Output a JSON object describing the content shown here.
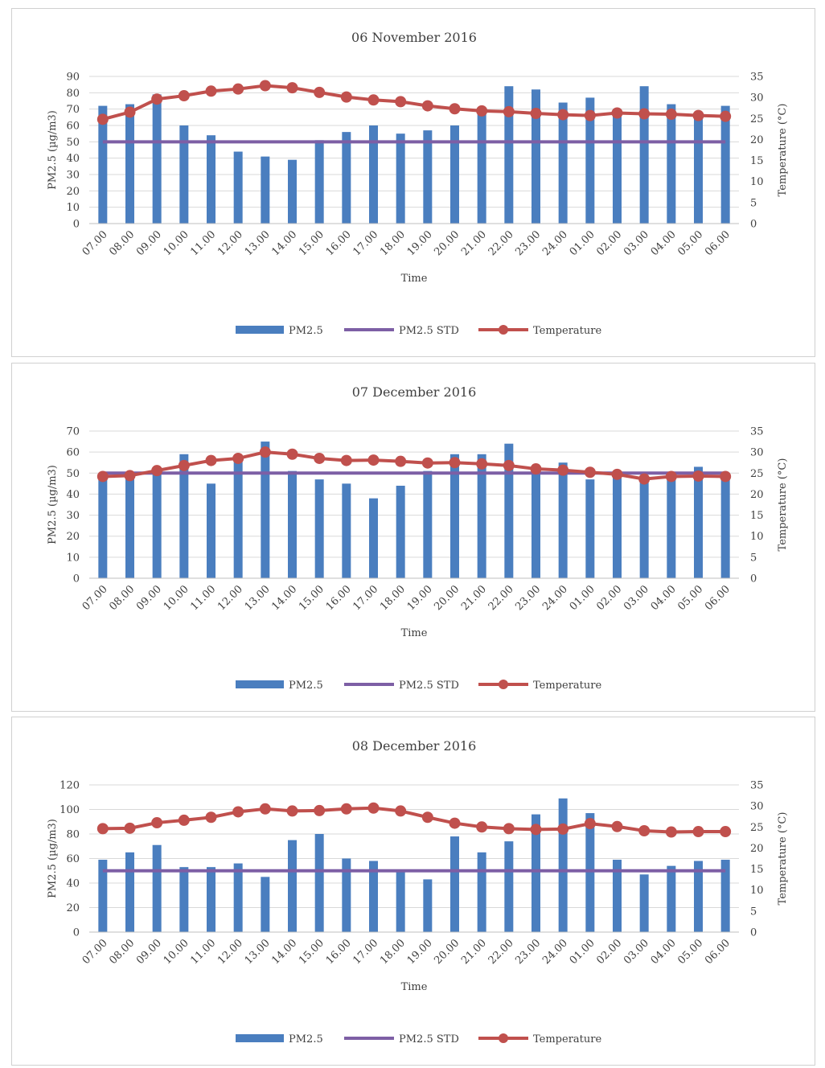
{
  "chart_data": [
    {
      "type": "bar",
      "title": "06 November 2016",
      "xlabel": "Time",
      "ylabel": "PM2.5 (µg/m3)",
      "y2label": "Temperature (°C)",
      "ylim": [
        0,
        90
      ],
      "yticks": [
        0,
        10,
        20,
        30,
        40,
        50,
        60,
        70,
        80,
        90
      ],
      "y2lim": [
        0,
        35
      ],
      "y2ticks": [
        0,
        5,
        10,
        15,
        20,
        25,
        30,
        35
      ],
      "grid": true,
      "legend_position": "bottom",
      "categories": [
        "07.00",
        "08.00",
        "09.00",
        "10.00",
        "11.00",
        "12.00",
        "13.00",
        "14.00",
        "15.00",
        "16.00",
        "17.00",
        "18.00",
        "19.00",
        "20.00",
        "21.00",
        "22.00",
        "23.00",
        "24.00",
        "01.00",
        "02.00",
        "03.00",
        "04.00",
        "05.00",
        "06.00"
      ],
      "series": [
        {
          "name": "PM2.5",
          "kind": "bar",
          "axis": "left",
          "color": "#4a7ebf",
          "values": [
            72,
            73,
            79,
            60,
            54,
            44,
            41,
            39,
            51,
            56,
            60,
            55,
            57,
            60,
            70,
            84,
            82,
            74,
            77,
            70,
            84,
            73,
            68,
            72
          ]
        },
        {
          "name": "PM2.5 STD",
          "kind": "line",
          "axis": "left",
          "color": "#7d5fa5",
          "values": [
            50,
            50,
            50,
            50,
            50,
            50,
            50,
            50,
            50,
            50,
            50,
            50,
            50,
            50,
            50,
            50,
            50,
            50,
            50,
            50,
            50,
            50,
            50,
            50
          ]
        },
        {
          "name": "Temperature",
          "kind": "line-marker",
          "axis": "right",
          "color": "#c0504d",
          "values": [
            24.8,
            26.5,
            29.6,
            30.4,
            31.5,
            32.0,
            32.8,
            32.3,
            31.2,
            30.1,
            29.4,
            29.0,
            28.0,
            27.3,
            26.8,
            26.6,
            26.2,
            25.9,
            25.7,
            26.3,
            26.1,
            26.0,
            25.7,
            25.5
          ]
        }
      ]
    },
    {
      "type": "bar",
      "title": "07 December 2016",
      "xlabel": "Time",
      "ylabel": "PM2.5 (µg/m3)",
      "y2label": "Temperature (°C)",
      "ylim": [
        0,
        70
      ],
      "yticks": [
        0,
        10,
        20,
        30,
        40,
        50,
        60,
        70
      ],
      "y2lim": [
        0,
        35
      ],
      "y2ticks": [
        0,
        5,
        10,
        15,
        20,
        25,
        30,
        35
      ],
      "grid": true,
      "legend_position": "bottom",
      "categories": [
        "07.00",
        "08.00",
        "09.00",
        "10.00",
        "11.00",
        "12.00",
        "13.00",
        "14.00",
        "15.00",
        "16.00",
        "17.00",
        "18.00",
        "19.00",
        "20.00",
        "21.00",
        "22.00",
        "23.00",
        "24.00",
        "01.00",
        "02.00",
        "03.00",
        "04.00",
        "05.00",
        "06.00"
      ],
      "series": [
        {
          "name": "PM2.5",
          "kind": "bar",
          "axis": "left",
          "color": "#4a7ebf",
          "values": [
            49,
            50,
            52,
            59,
            45,
            58,
            65,
            51,
            47,
            45,
            38,
            44,
            51,
            59,
            59,
            64,
            52,
            55,
            47,
            50,
            48,
            50,
            53,
            50
          ]
        },
        {
          "name": "PM2.5 STD",
          "kind": "line",
          "axis": "left",
          "color": "#7d5fa5",
          "values": [
            50,
            50,
            50,
            50,
            50,
            50,
            50,
            50,
            50,
            50,
            50,
            50,
            50,
            50,
            50,
            50,
            50,
            50,
            50,
            50,
            50,
            50,
            50,
            50
          ]
        },
        {
          "name": "Temperature",
          "kind": "line-marker",
          "axis": "right",
          "color": "#c0504d",
          "values": [
            24.2,
            24.4,
            25.6,
            26.8,
            28.0,
            28.5,
            30.0,
            29.5,
            28.5,
            28.0,
            28.1,
            27.8,
            27.4,
            27.5,
            27.2,
            26.8,
            26.0,
            25.7,
            25.2,
            24.7,
            23.6,
            24.2,
            24.3,
            24.2
          ]
        }
      ]
    },
    {
      "type": "bar",
      "title": "08 December 2016",
      "xlabel": "Time",
      "ylabel": "PM2.5 (µg/m3)",
      "y2label": "Temperature (°C)",
      "ylim": [
        0,
        120
      ],
      "yticks": [
        0,
        20,
        40,
        60,
        80,
        100,
        120
      ],
      "y2lim": [
        0,
        35
      ],
      "y2ticks": [
        0,
        5,
        10,
        15,
        20,
        25,
        30,
        35
      ],
      "grid": true,
      "legend_position": "bottom",
      "categories": [
        "07.00",
        "08.00",
        "09.00",
        "10.00",
        "11.00",
        "12.00",
        "13.00",
        "14.00",
        "15.00",
        "16.00",
        "17.00",
        "18.00",
        "19.00",
        "20.00",
        "21.00",
        "22.00",
        "23.00",
        "24.00",
        "01.00",
        "02.00",
        "03.00",
        "04.00",
        "05.00",
        "06.00"
      ],
      "series": [
        {
          "name": "PM2.5",
          "kind": "bar",
          "axis": "left",
          "color": "#4a7ebf",
          "values": [
            59,
            65,
            71,
            53,
            53,
            56,
            45,
            75,
            80,
            60,
            58,
            51,
            43,
            78,
            65,
            74,
            96,
            109,
            97,
            59,
            47,
            54,
            58,
            59
          ]
        },
        {
          "name": "PM2.5 STD",
          "kind": "line",
          "axis": "left",
          "color": "#7d5fa5",
          "values": [
            50,
            50,
            50,
            50,
            50,
            50,
            50,
            50,
            50,
            50,
            50,
            50,
            50,
            50,
            50,
            50,
            50,
            50,
            50,
            50,
            50,
            50,
            50,
            50
          ]
        },
        {
          "name": "Temperature",
          "kind": "line-marker",
          "axis": "right",
          "color": "#c0504d",
          "values": [
            24.6,
            24.7,
            26.0,
            26.6,
            27.3,
            28.6,
            29.3,
            28.8,
            28.9,
            29.3,
            29.5,
            28.8,
            27.3,
            25.9,
            25.0,
            24.6,
            24.4,
            24.5,
            25.8,
            25.1,
            24.1,
            23.8,
            23.9,
            23.9
          ]
        }
      ]
    }
  ]
}
